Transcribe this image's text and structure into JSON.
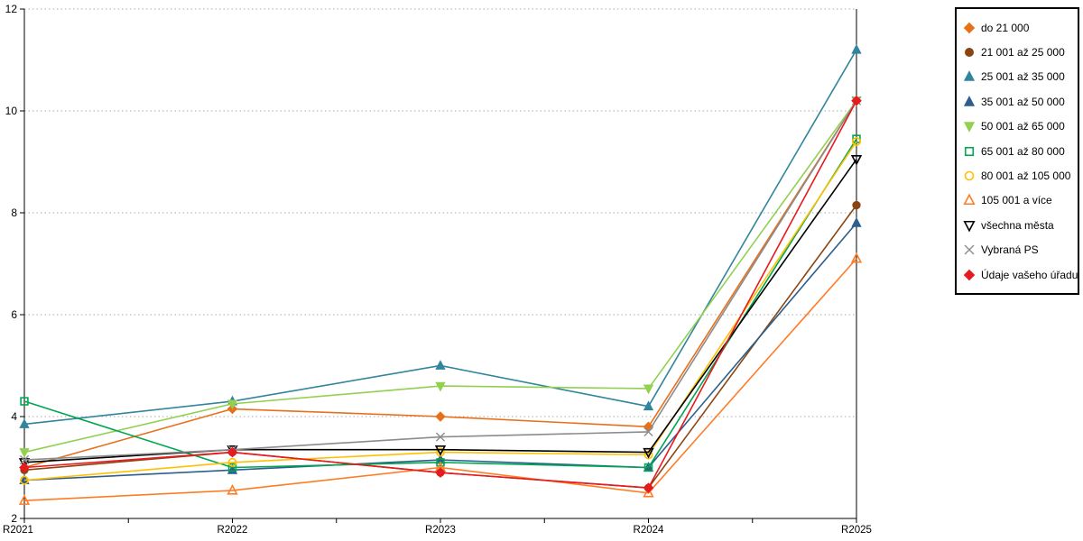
{
  "chart_data": {
    "type": "line",
    "title": "",
    "xlabel": "",
    "ylabel": "",
    "categories": [
      "R2021",
      "R2022",
      "R2023",
      "R2024",
      "R2025"
    ],
    "y_ticks": [
      2,
      4,
      6,
      8,
      10,
      12
    ],
    "ylim": [
      2,
      12
    ],
    "grid": "horizontal-dotted",
    "legend_position": "right",
    "series": [
      {
        "name": "do 21 000",
        "color": "#e8701a",
        "marker": "diamond",
        "filled": true,
        "values": [
          3.0,
          4.15,
          4.0,
          3.8,
          10.2
        ]
      },
      {
        "name": "21 001 až 25 000",
        "color": "#8b4513",
        "marker": "circle",
        "filled": true,
        "values": [
          2.95,
          3.3,
          2.9,
          2.6,
          8.15
        ]
      },
      {
        "name": "25 001 až 35 000",
        "color": "#31859c",
        "marker": "triangle-up",
        "filled": true,
        "values": [
          3.85,
          4.3,
          5.0,
          4.2,
          11.2
        ]
      },
      {
        "name": "35 001 až 50 000",
        "color": "#2d5e8c",
        "marker": "triangle-up",
        "filled": true,
        "values": [
          2.75,
          2.95,
          3.15,
          3.0,
          7.8
        ]
      },
      {
        "name": "50 001 až 65 000",
        "color": "#92d050",
        "marker": "triangle-down",
        "filled": true,
        "values": [
          3.3,
          4.25,
          4.6,
          4.55,
          10.2
        ]
      },
      {
        "name": "65 001 až 80 000",
        "color": "#00a651",
        "marker": "square",
        "filled": false,
        "values": [
          4.3,
          3.0,
          3.1,
          3.0,
          9.45
        ]
      },
      {
        "name": "80 001 až 105 000",
        "color": "#ffc000",
        "marker": "circle",
        "filled": false,
        "values": [
          2.75,
          3.1,
          3.3,
          3.25,
          9.4
        ]
      },
      {
        "name": "105 001 a více",
        "color": "#ff7c26",
        "marker": "triangle-up",
        "filled": false,
        "values": [
          2.35,
          2.55,
          3.0,
          2.5,
          7.1
        ]
      },
      {
        "name": "všechna města",
        "color": "#000000",
        "marker": "triangle-down",
        "filled": false,
        "values": [
          3.1,
          3.35,
          3.35,
          3.3,
          9.05
        ]
      },
      {
        "name": "Vybraná PS",
        "color": "#8c8c8c",
        "marker": "x",
        "filled": false,
        "values": [
          3.15,
          3.35,
          3.6,
          3.7,
          10.2
        ]
      },
      {
        "name": "Údaje vašeho úřadu",
        "color": "#e8191f",
        "marker": "diamond",
        "filled": true,
        "values": [
          3.0,
          3.3,
          2.9,
          2.6,
          10.2
        ]
      }
    ],
    "style": {
      "grid_color": "#aaaaaa",
      "axis_color": "#000000",
      "background": "#ffffff"
    }
  }
}
